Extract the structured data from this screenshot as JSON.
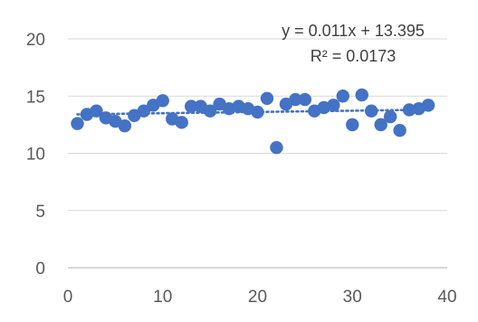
{
  "chart_data": {
    "type": "scatter",
    "title": "",
    "xlabel": "",
    "ylabel": "",
    "xlim": [
      0,
      40
    ],
    "ylim": [
      0,
      20
    ],
    "x_ticks": [
      0,
      10,
      20,
      30,
      40
    ],
    "y_ticks": [
      0,
      5,
      10,
      15,
      20
    ],
    "x_tick_labels": [
      "0",
      "10",
      "20",
      "30",
      "40"
    ],
    "y_tick_labels": [
      "0",
      "5",
      "10",
      "15",
      "20"
    ],
    "grid": "horizontal",
    "legend": "none",
    "colors": {
      "marker": "#4472c4",
      "trendline": "#4472c4",
      "gridline": "#d9d9d9",
      "text": "#595959"
    },
    "series": [
      {
        "points": [
          [
            1,
            12.6
          ],
          [
            2,
            13.4
          ],
          [
            3,
            13.7
          ],
          [
            4,
            13.1
          ],
          [
            5,
            12.8
          ],
          [
            6,
            12.4
          ],
          [
            7,
            13.3
          ],
          [
            8,
            13.7
          ],
          [
            9,
            14.2
          ],
          [
            10,
            14.6
          ],
          [
            11,
            13.0
          ],
          [
            12,
            12.7
          ],
          [
            13,
            14.1
          ],
          [
            14,
            14.1
          ],
          [
            15,
            13.7
          ],
          [
            16,
            14.3
          ],
          [
            17,
            13.9
          ],
          [
            18,
            14.1
          ],
          [
            19,
            13.9
          ],
          [
            20,
            13.6
          ],
          [
            21,
            14.8
          ],
          [
            22,
            10.5
          ],
          [
            23,
            14.3
          ],
          [
            24,
            14.7
          ],
          [
            25,
            14.7
          ],
          [
            26,
            13.7
          ],
          [
            27,
            14.0
          ],
          [
            28,
            14.2
          ],
          [
            29,
            15.0
          ],
          [
            30,
            12.5
          ],
          [
            31,
            15.1
          ],
          [
            32,
            13.7
          ],
          [
            33,
            12.5
          ],
          [
            34,
            13.2
          ],
          [
            35,
            12.0
          ],
          [
            36,
            13.8
          ],
          [
            37,
            13.9
          ],
          [
            38,
            14.2
          ]
        ]
      }
    ],
    "trendline": {
      "type": "linear",
      "slope": 0.011,
      "intercept": 13.395,
      "x_range": [
        1,
        38
      ],
      "equation_label": "y = 0.011x + 13.395",
      "r2_label": "R² = 0.0173"
    }
  }
}
